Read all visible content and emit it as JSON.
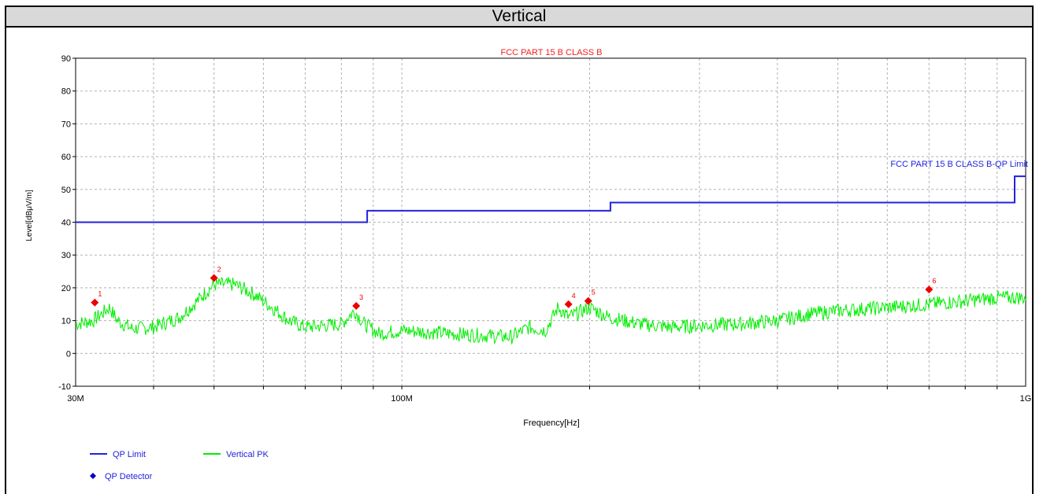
{
  "header": {
    "title": "Vertical"
  },
  "chart_data": {
    "type": "line",
    "title": "FCC PART 15 B CLASS B",
    "xlabel": "Frequency[Hz]",
    "ylabel": "Level[dBμV/m]",
    "xscale": "log",
    "xlim": [
      30000000,
      1000000000
    ],
    "ylim": [
      -10,
      90
    ],
    "y_ticks": [
      -10,
      0,
      10,
      20,
      30,
      40,
      50,
      60,
      70,
      80,
      90
    ],
    "x_tick_labels": [
      {
        "value": 30000000,
        "label": "30M"
      },
      {
        "value": 100000000,
        "label": "100M"
      },
      {
        "value": 1000000000,
        "label": "1G"
      }
    ],
    "x_grid_values": [
      40000000,
      50000000,
      60000000,
      70000000,
      80000000,
      90000000,
      100000000,
      200000000,
      300000000,
      400000000,
      500000000,
      600000000,
      700000000,
      800000000,
      900000000
    ],
    "grid": true,
    "limit_label": "FCC PART 15 B CLASS B-QP Limit",
    "series": [
      {
        "name": "QP Limit",
        "color": "#2222dd",
        "kind": "step",
        "points": [
          [
            30000000,
            40
          ],
          [
            88000000,
            40
          ],
          [
            88000000,
            43.5
          ],
          [
            216000000,
            43.5
          ],
          [
            216000000,
            46
          ],
          [
            960000000,
            46
          ],
          [
            960000000,
            54
          ],
          [
            1000000000,
            54
          ]
        ]
      },
      {
        "name": "Vertical PK",
        "color": "#00ee00",
        "kind": "noisy",
        "points": [
          [
            30000000,
            9
          ],
          [
            32000000,
            10
          ],
          [
            34000000,
            14
          ],
          [
            35000000,
            10
          ],
          [
            37000000,
            7.5
          ],
          [
            40000000,
            8
          ],
          [
            44000000,
            11
          ],
          [
            47000000,
            16
          ],
          [
            50000000,
            21
          ],
          [
            54000000,
            21
          ],
          [
            58000000,
            18
          ],
          [
            62000000,
            14
          ],
          [
            66000000,
            10
          ],
          [
            70000000,
            8
          ],
          [
            75000000,
            8.5
          ],
          [
            80000000,
            9
          ],
          [
            84000000,
            13
          ],
          [
            87000000,
            9
          ],
          [
            92000000,
            6
          ],
          [
            100000000,
            7
          ],
          [
            110000000,
            6.5
          ],
          [
            120000000,
            6
          ],
          [
            135000000,
            5.5
          ],
          [
            150000000,
            5
          ],
          [
            160000000,
            8
          ],
          [
            170000000,
            7
          ],
          [
            178000000,
            14
          ],
          [
            185000000,
            11
          ],
          [
            200000000,
            14
          ],
          [
            215000000,
            11
          ],
          [
            240000000,
            9
          ],
          [
            270000000,
            8
          ],
          [
            300000000,
            8.5
          ],
          [
            350000000,
            9
          ],
          [
            400000000,
            10
          ],
          [
            450000000,
            12
          ],
          [
            500000000,
            13
          ],
          [
            600000000,
            14
          ],
          [
            700000000,
            15
          ],
          [
            800000000,
            16
          ],
          [
            900000000,
            17
          ],
          [
            1000000000,
            17
          ]
        ]
      }
    ],
    "markers": {
      "name": "QP Detector",
      "legend_color": "#0000cc",
      "color": "#ee0000",
      "points": [
        {
          "label": "1",
          "x": 32200000,
          "y": 15.5
        },
        {
          "label": "2",
          "x": 50000000,
          "y": 23
        },
        {
          "label": "3",
          "x": 84500000,
          "y": 14.5
        },
        {
          "label": "4",
          "x": 185000000,
          "y": 15
        },
        {
          "label": "5",
          "x": 199000000,
          "y": 16
        },
        {
          "label": "6",
          "x": 700000000,
          "y": 19.5
        }
      ]
    },
    "legend": [
      {
        "label": "QP Limit",
        "color": "#2222dd",
        "kind": "line"
      },
      {
        "label": "Vertical PK",
        "color": "#00ee00",
        "kind": "line"
      },
      {
        "label": "QP Detector",
        "color": "#0000cc",
        "kind": "diamond"
      }
    ],
    "legend_position": "bottom-left"
  }
}
